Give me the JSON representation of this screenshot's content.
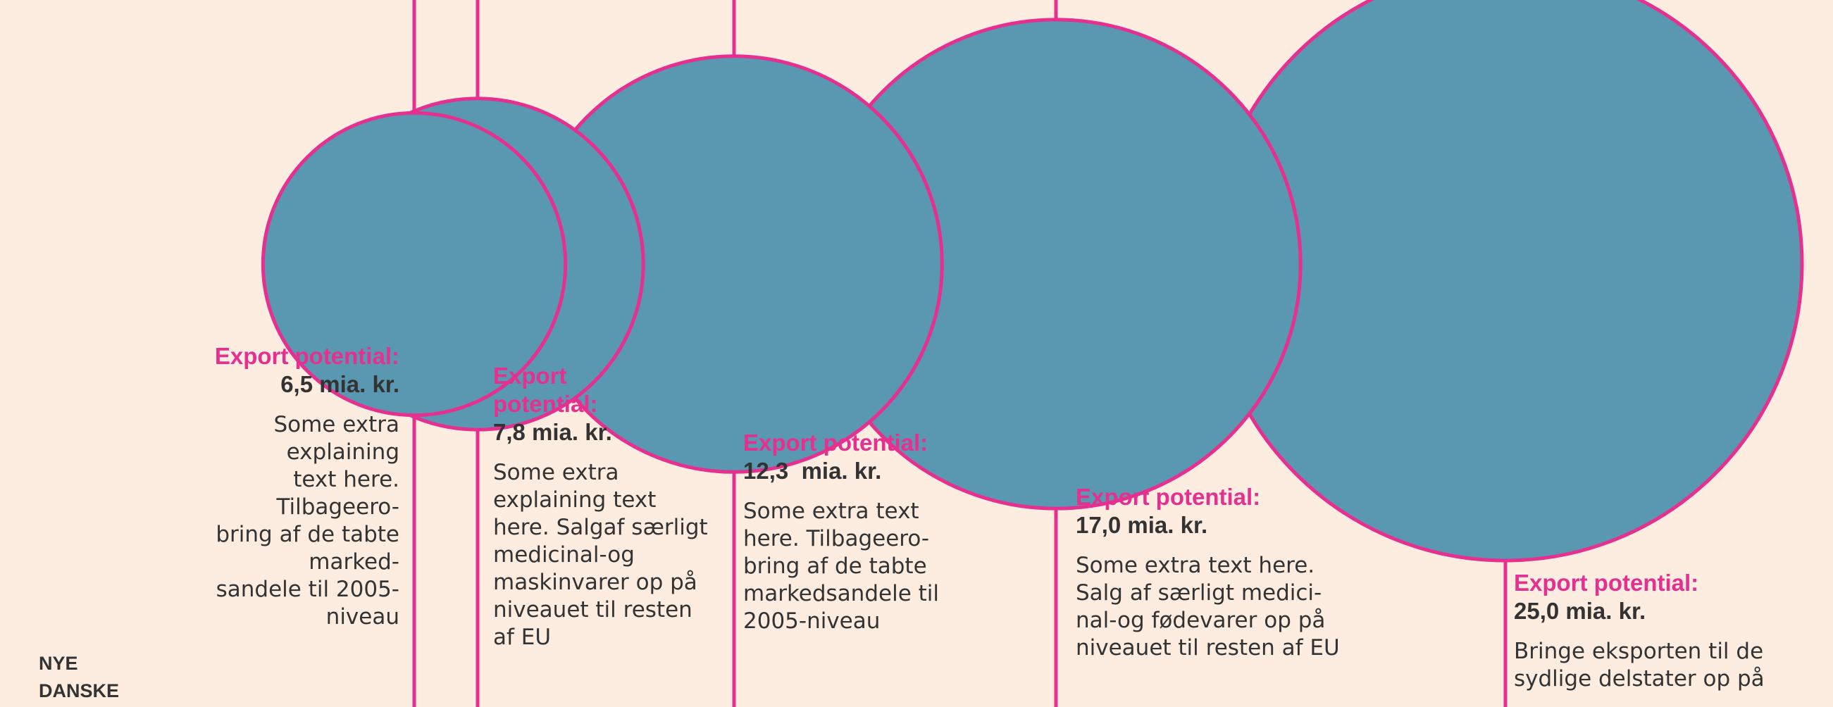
{
  "colors": {
    "background": "#fdece0",
    "bubble_fill": "#5a97b0",
    "accent": "#e6308f",
    "text": "#333333"
  },
  "brand": {
    "text": "NYE\nDANSKE"
  },
  "chart_data": {
    "type": "bubble",
    "unit": "mia. kr.",
    "items": [
      {
        "label": "Export potential:",
        "value": 6.5,
        "value_text": "6,5 mia. kr.",
        "description": "Some extra explaining\ntext here. Tilbageero-\nbring af de tabte marked-\nsandele til 2005-niveau"
      },
      {
        "label": "Export\npotential:",
        "value": 7.8,
        "value_text": "7,8 mia. kr.",
        "description": "Some extra\nexplaining text\nhere. Salgaf særligt\nmedicinal-og\nmaskinvarer op på\nniveauet til resten\naf EU"
      },
      {
        "label": "Export potential:",
        "value": 12.3,
        "value_text": "12,3  mia. kr.",
        "description": "Some extra text\nhere. Tilbageero-\nbring af de tabte\nmarkedsandele til\n2005-niveau"
      },
      {
        "label": "Export potential:",
        "value": 17.0,
        "value_text": "17,0 mia. kr.",
        "description": "Some extra text here.\nSalg af særligt medici-\nnal-og fødevarer op på\nniveauet til resten af EU"
      },
      {
        "label": "Export potential:",
        "value": 25.0,
        "value_text": "25,0 mia. kr.",
        "description": "Bringe eksporten til de\nsydlige delstater op på"
      }
    ]
  }
}
